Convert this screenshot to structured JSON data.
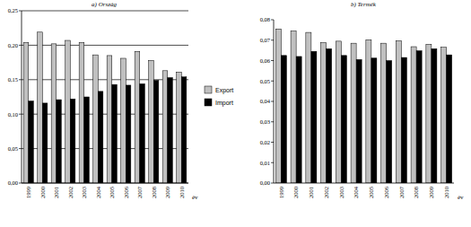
{
  "chart_data": [
    {
      "type": "bar",
      "title": "a) Ország",
      "x_label": "év",
      "categories": [
        "1999",
        "2000",
        "2001",
        "2002",
        "2003",
        "2004",
        "2005",
        "2006",
        "2007",
        "2008",
        "2009",
        "2010"
      ],
      "series": [
        {
          "name": "Export",
          "color": "#c0c0c0",
          "values": [
            0.204,
            0.219,
            0.202,
            0.207,
            0.204,
            0.186,
            0.185,
            0.181,
            0.191,
            0.178,
            0.163,
            0.161
          ]
        },
        {
          "name": "Import",
          "color": "#000000",
          "values": [
            0.119,
            0.116,
            0.121,
            0.122,
            0.125,
            0.133,
            0.143,
            0.142,
            0.144,
            0.149,
            0.153,
            0.154
          ]
        }
      ],
      "ylim": [
        0,
        0.25
      ],
      "yticks": [
        {
          "value": 0,
          "label": "0,00"
        },
        {
          "value": 0.05,
          "label": "0,05"
        },
        {
          "value": 0.1,
          "label": "0,10"
        },
        {
          "value": 0.15,
          "label": "0,15"
        },
        {
          "value": 0.2,
          "label": "0,20"
        },
        {
          "value": 0.25,
          "label": "0,25"
        }
      ],
      "grid": true,
      "legend": "right"
    },
    {
      "type": "bar",
      "title": "b) Termék",
      "x_label": "év",
      "categories": [
        "1999",
        "2000",
        "2001",
        "2002",
        "2003",
        "2004",
        "2005",
        "2006",
        "2007",
        "2008",
        "2009",
        "2010"
      ],
      "series": [
        {
          "color": "#c0c0c0",
          "values": [
            0.0755,
            0.0745,
            0.0738,
            0.0688,
            0.0695,
            0.0685,
            0.0702,
            0.0685,
            0.0697,
            0.0668,
            0.068,
            0.0665
          ]
        },
        {
          "color": "#000000",
          "values": [
            0.0625,
            0.062,
            0.0645,
            0.0658,
            0.0625,
            0.0605,
            0.0612,
            0.06,
            0.0615,
            0.0648,
            0.0658,
            0.0628
          ]
        }
      ],
      "ylim": [
        0,
        0.08
      ],
      "yticks": [
        {
          "value": 0,
          "label": "0,00"
        },
        {
          "value": 0.01,
          "label": "0,01"
        },
        {
          "value": 0.02,
          "label": "0,02"
        },
        {
          "value": 0.03,
          "label": "0,03"
        },
        {
          "value": 0.04,
          "label": "0,04"
        },
        {
          "value": 0.05,
          "label": "0,05"
        },
        {
          "value": 0.06,
          "label": "0,06"
        },
        {
          "value": 0.07,
          "label": "0,07"
        },
        {
          "value": 0.08,
          "label": "0,08"
        }
      ],
      "grid": false
    }
  ]
}
